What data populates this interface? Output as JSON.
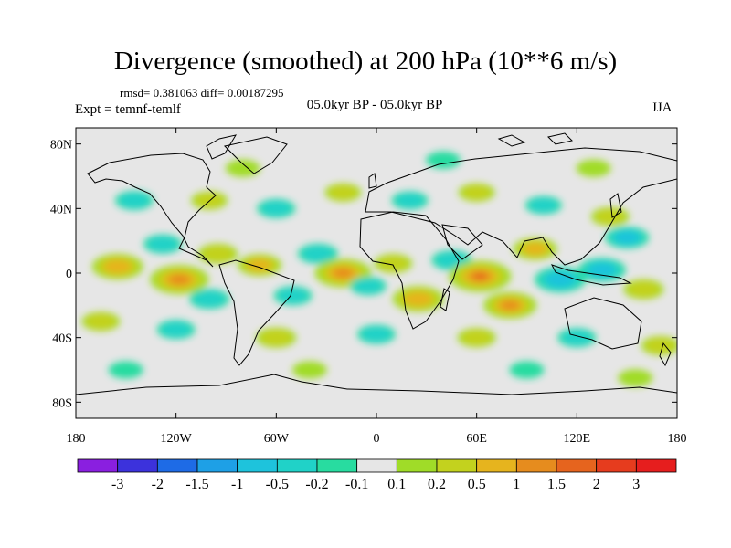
{
  "title": "Divergence (smoothed) at 200 hPa (10**6 m/s)",
  "stats": "rmsd= 0.381063 diff= 0.00187295",
  "experiment": "Expt = temnf-temlf",
  "period": "05.0kyr BP - 05.0kyr BP",
  "season": "JJA",
  "chart_data": {
    "type": "heatmap",
    "title": "Divergence (smoothed) at 200 hPa (10**6 m/s)",
    "projection": "cylindrical equidistant",
    "xlim": [
      -180,
      180
    ],
    "ylim": [
      -90,
      90
    ],
    "x_ticks": [
      {
        "value": -180,
        "label": "180"
      },
      {
        "value": -120,
        "label": "120W"
      },
      {
        "value": -60,
        "label": "60W"
      },
      {
        "value": 0,
        "label": "0"
      },
      {
        "value": 60,
        "label": "60E"
      },
      {
        "value": 120,
        "label": "120E"
      },
      {
        "value": 180,
        "label": "180"
      }
    ],
    "y_ticks": [
      {
        "value": 80,
        "label": "80N"
      },
      {
        "value": 40,
        "label": "40N"
      },
      {
        "value": 0,
        "label": "0"
      },
      {
        "value": -40,
        "label": "40S"
      },
      {
        "value": -80,
        "label": "80S"
      }
    ],
    "colorbar": {
      "levels": [
        "-3",
        "-2",
        "-1.5",
        "-1",
        "-0.5",
        "-0.2",
        "-0.1",
        "0.1",
        "0.2",
        "0.5",
        "1",
        "1.5",
        "2",
        "3"
      ],
      "colors": [
        "#8a1fe0",
        "#3c32dc",
        "#1e6be6",
        "#1ea0e6",
        "#1ec3dc",
        "#20d2c8",
        "#28dca0",
        "#e6e6e6",
        "#a0dc28",
        "#c3d21e",
        "#e6b41e",
        "#e68c1e",
        "#e6641e",
        "#e63c1e",
        "#e61e1e"
      ]
    },
    "anomalies": [
      {
        "lon": -155,
        "lat": 4,
        "value": 1.2
      },
      {
        "lon": -118,
        "lat": -4,
        "value": 1.6
      },
      {
        "lon": -100,
        "lat": -16,
        "value": -0.6
      },
      {
        "lon": -128,
        "lat": 18,
        "value": -0.5
      },
      {
        "lon": -95,
        "lat": 12,
        "value": 0.6
      },
      {
        "lon": -70,
        "lat": 5,
        "value": 0.8
      },
      {
        "lon": -50,
        "lat": -14,
        "value": -0.5
      },
      {
        "lon": -35,
        "lat": 12,
        "value": -0.6
      },
      {
        "lon": -20,
        "lat": 0,
        "value": 1.5
      },
      {
        "lon": -5,
        "lat": -8,
        "value": -0.4
      },
      {
        "lon": 10,
        "lat": 6,
        "value": 0.5
      },
      {
        "lon": 25,
        "lat": -16,
        "value": 1.2
      },
      {
        "lon": 45,
        "lat": 8,
        "value": -0.6
      },
      {
        "lon": 62,
        "lat": -2,
        "value": 1.8
      },
      {
        "lon": 80,
        "lat": -20,
        "value": 1.3
      },
      {
        "lon": 95,
        "lat": 15,
        "value": 0.8
      },
      {
        "lon": 110,
        "lat": -4,
        "value": -1.2
      },
      {
        "lon": 135,
        "lat": 2,
        "value": -1.0
      },
      {
        "lon": 150,
        "lat": 22,
        "value": -0.8
      },
      {
        "lon": 160,
        "lat": -10,
        "value": 0.6
      },
      {
        "lon": 140,
        "lat": 35,
        "value": 0.5
      },
      {
        "lon": 100,
        "lat": 42,
        "value": -0.4
      },
      {
        "lon": 60,
        "lat": 50,
        "value": 0.4
      },
      {
        "lon": 20,
        "lat": 45,
        "value": -0.4
      },
      {
        "lon": -20,
        "lat": 50,
        "value": 0.4
      },
      {
        "lon": -60,
        "lat": 40,
        "value": -0.5
      },
      {
        "lon": -100,
        "lat": 45,
        "value": 0.4
      },
      {
        "lon": -145,
        "lat": 45,
        "value": -0.5
      },
      {
        "lon": -165,
        "lat": -30,
        "value": 0.5
      },
      {
        "lon": -120,
        "lat": -35,
        "value": -0.5
      },
      {
        "lon": -60,
        "lat": -40,
        "value": 0.6
      },
      {
        "lon": 0,
        "lat": -38,
        "value": -0.5
      },
      {
        "lon": 60,
        "lat": -40,
        "value": 0.5
      },
      {
        "lon": 120,
        "lat": -40,
        "value": -0.5
      },
      {
        "lon": 170,
        "lat": -45,
        "value": 0.5
      },
      {
        "lon": -150,
        "lat": -60,
        "value": -0.3
      },
      {
        "lon": -40,
        "lat": -60,
        "value": 0.3
      },
      {
        "lon": 90,
        "lat": -60,
        "value": -0.3
      },
      {
        "lon": 155,
        "lat": -65,
        "value": 0.3
      },
      {
        "lon": -80,
        "lat": 65,
        "value": 0.3
      },
      {
        "lon": 40,
        "lat": 70,
        "value": -0.3
      },
      {
        "lon": 130,
        "lat": 65,
        "value": 0.3
      }
    ]
  }
}
